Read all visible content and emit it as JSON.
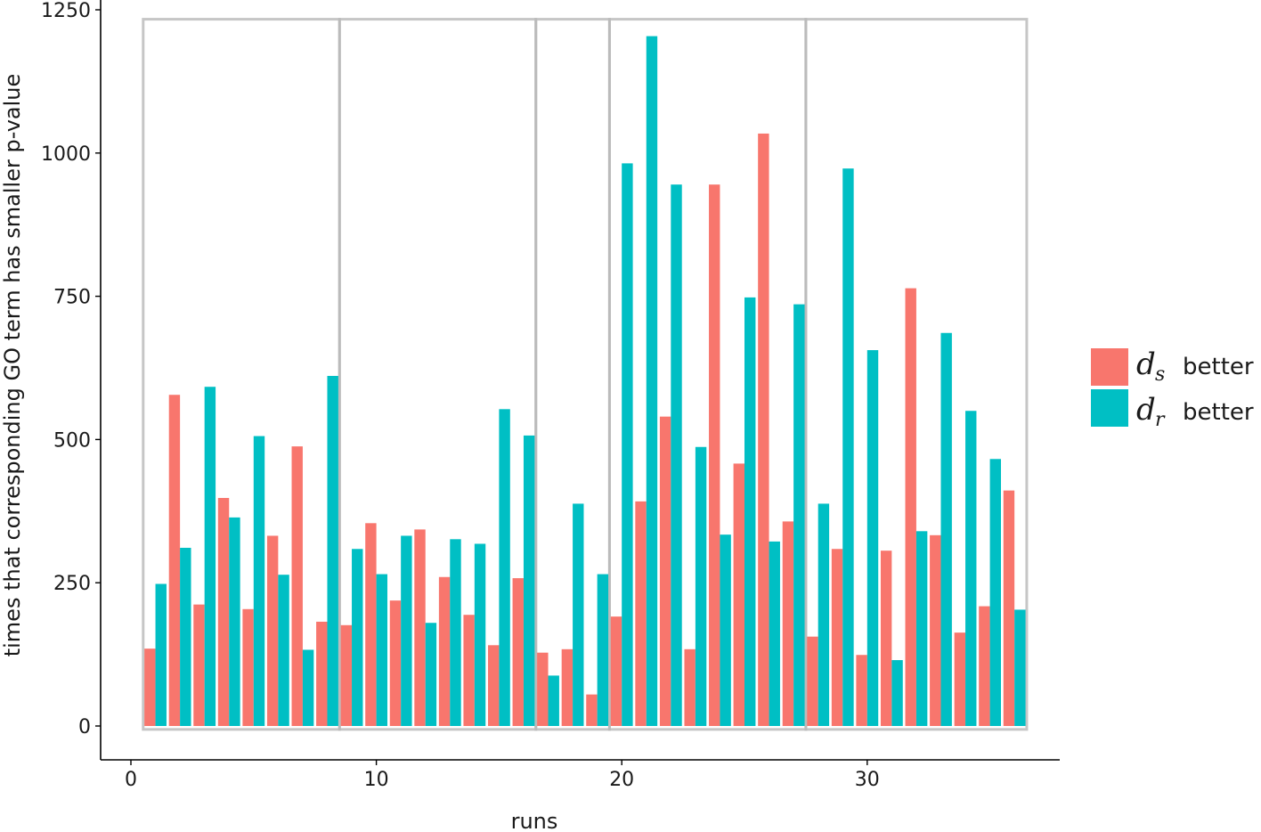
{
  "chart_data": {
    "type": "bar",
    "title": "",
    "xlabel": "runs",
    "ylabel": "times that corresponding GO term has smaller p-value",
    "xlim": [
      -0.5,
      38.5
    ],
    "ylim": [
      -50,
      1250
    ],
    "xticks": [
      0,
      10,
      20,
      30
    ],
    "yticks": [
      0,
      250,
      500,
      750,
      1000,
      1250
    ],
    "x": [
      1,
      2,
      3,
      4,
      5,
      6,
      7,
      8,
      9,
      10,
      11,
      12,
      13,
      14,
      15,
      16,
      17,
      18,
      19,
      20,
      21,
      22,
      23,
      24,
      25,
      26,
      27,
      28,
      29,
      30,
      31,
      32,
      33,
      34,
      35,
      36
    ],
    "series": [
      {
        "name": "d_s better",
        "color": "#f8766d",
        "values": [
          135,
          578,
          212,
          398,
          204,
          332,
          488,
          182,
          176,
          354,
          219,
          343,
          260,
          194,
          141,
          258,
          128,
          134,
          55,
          191,
          392,
          540,
          134,
          945,
          458,
          1034,
          357,
          156,
          309,
          124,
          306,
          764,
          333,
          163,
          209,
          411
        ]
      },
      {
        "name": "d_r better",
        "color": "#00bfc4",
        "values": [
          248,
          311,
          592,
          364,
          506,
          264,
          133,
          611,
          309,
          265,
          332,
          180,
          326,
          318,
          553,
          507,
          88,
          388,
          265,
          982,
          1204,
          945,
          487,
          334,
          748,
          322,
          736,
          388,
          973,
          656,
          115,
          340,
          686,
          550,
          466,
          203
        ]
      }
    ],
    "group_boxes": [
      [
        1,
        8
      ],
      [
        9,
        16
      ],
      [
        17,
        19
      ],
      [
        20,
        27
      ],
      [
        28,
        36
      ]
    ],
    "legend": {
      "position": "right",
      "entries": [
        {
          "symbol": "d",
          "subscript": "s",
          "text": "better",
          "color": "#f8766d"
        },
        {
          "symbol": "d",
          "subscript": "r",
          "text": "better",
          "color": "#00bfc4"
        }
      ]
    },
    "grid": false
  }
}
